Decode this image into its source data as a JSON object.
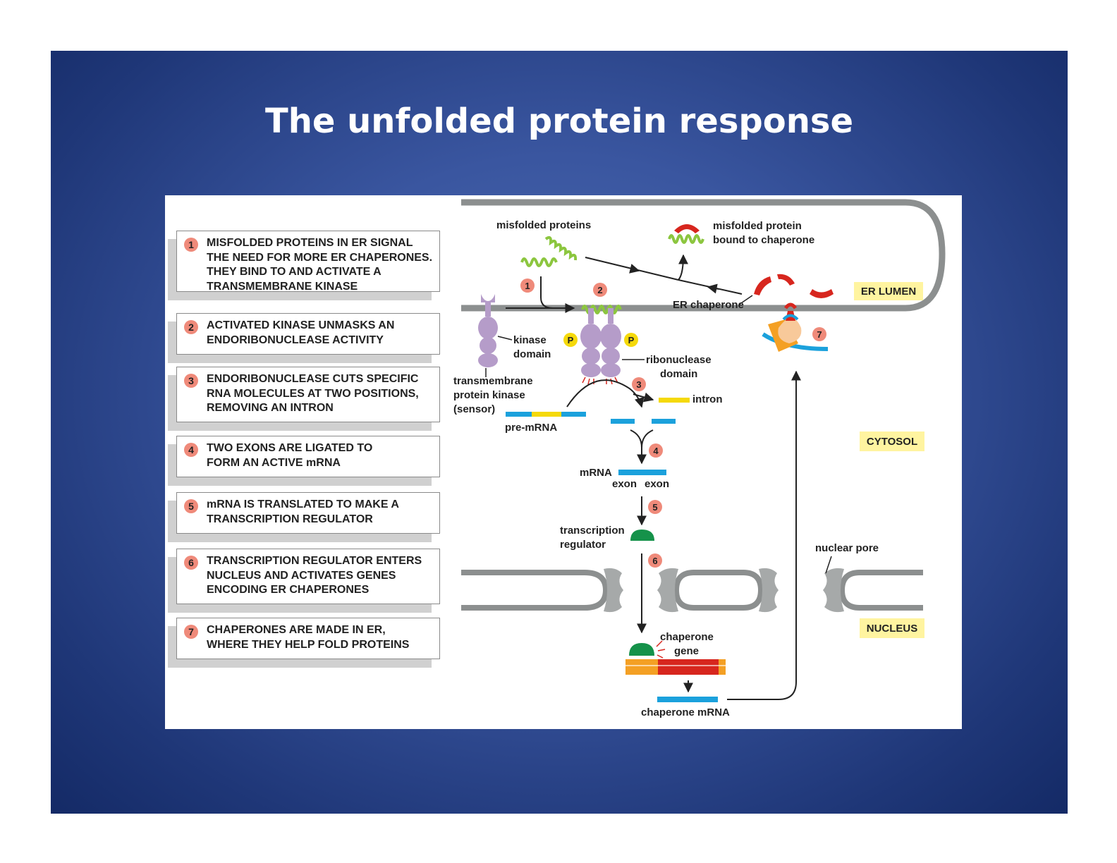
{
  "title": "The unfolded protein response",
  "steps": [
    {
      "num": "1",
      "text": "MISFOLDED PROTEINS IN ER SIGNAL\nTHE NEED FOR MORE ER CHAPERONES.\nTHEY BIND TO AND ACTIVATE A\nTRANSMEMBRANE KINASE"
    },
    {
      "num": "2",
      "text": "ACTIVATED KINASE UNMASKS AN\nENDORIBONUCLEASE ACTIVITY"
    },
    {
      "num": "3",
      "text": "ENDORIBONUCLEASE CUTS SPECIFIC\nRNA MOLECULES AT TWO POSITIONS,\nREMOVING AN INTRON"
    },
    {
      "num": "4",
      "text": "TWO EXONS ARE LIGATED TO\nFORM AN ACTIVE mRNA"
    },
    {
      "num": "5",
      "text": "mRNA IS TRANSLATED TO MAKE A\nTRANSCRIPTION REGULATOR"
    },
    {
      "num": "6",
      "text": "TRANSCRIPTION REGULATOR ENTERS\nNUCLEUS AND ACTIVATES GENES\nENCODING ER CHAPERONES"
    },
    {
      "num": "7",
      "text": "CHAPERONES ARE MADE IN ER,\nWHERE THEY HELP FOLD PROTEINS"
    }
  ],
  "regions": {
    "er_lumen": "ER LUMEN",
    "cytosol": "CYTOSOL",
    "nucleus": "NUCLEUS"
  },
  "labels": {
    "misfolded_proteins": "misfolded proteins",
    "bound_line1": "misfolded protein",
    "bound_line2": "bound to chaperone",
    "er_chaperone": "ER chaperone",
    "kinase_line1": "kinase",
    "kinase_line2": "domain",
    "tpk_line1": "transmembrane",
    "tpk_line2": "protein kinase",
    "tpk_line3": "(sensor)",
    "ribo_line1": "ribonuclease",
    "ribo_line2": "domain",
    "phosphate": "P",
    "intron": "intron",
    "pre_mrna": "pre-mRNA",
    "mrna": "mRNA",
    "exon1": "exon",
    "exon2": "exon",
    "tr_line1": "transcription",
    "tr_line2": "regulator",
    "nuclear_pore": "nuclear pore",
    "chap_gene_line1": "chaperone",
    "chap_gene_line2": "gene",
    "chap_mrna": "chaperone mRNA"
  },
  "diagram_numbers": [
    "1",
    "2",
    "3",
    "4",
    "5",
    "6",
    "7"
  ],
  "colors": {
    "slide_blue": "#3a56a0",
    "membrane_gray": "#8c8f8f",
    "misfolded_green": "#8cc63f",
    "kinase_purple": "#b59cc9",
    "phosphate_yellow": "#f5d90a",
    "exon_blue": "#1ba1dc",
    "intron_yellow": "#f5d90a",
    "chaperone_red": "#d7261e",
    "regulator_green": "#15924a",
    "gene_orange": "#f4a024",
    "region_label_bg": "#fff4a0",
    "step_number_salmon": "#ef8a7a"
  }
}
